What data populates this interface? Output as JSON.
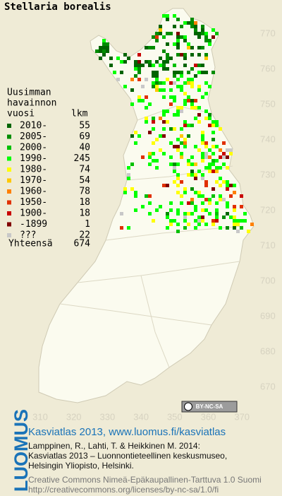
{
  "title": "Stellaria borealis",
  "legend": {
    "heading": [
      "Uusimman",
      "havainnon",
      "vuosi"
    ],
    "count_heading": "lkm",
    "items": [
      {
        "label": "2010-",
        "count": 55,
        "color": "#006400"
      },
      {
        "label": "2005-",
        "count": 69,
        "color": "#008c00"
      },
      {
        "label": "2000-",
        "count": 40,
        "color": "#00c000"
      },
      {
        "label": "1990-",
        "count": 245,
        "color": "#00ff00"
      },
      {
        "label": "1980-",
        "count": 74,
        "color": "#ffff00"
      },
      {
        "label": "1970-",
        "count": 54,
        "color": "#ffc800"
      },
      {
        "label": "1960-",
        "count": 78,
        "color": "#ff8000"
      },
      {
        "label": "1950-",
        "count": 18,
        "color": "#e03000"
      },
      {
        "label": "1900-",
        "count": 18,
        "color": "#c80000"
      },
      {
        "label": "-1899",
        "count": 1,
        "color": "#800000"
      },
      {
        "label": "???",
        "count": 22,
        "color": "#c8c8c8"
      }
    ],
    "total_label": "Yhteensä",
    "total": 674
  },
  "map": {
    "xticks": [
      310,
      320,
      330,
      340,
      350,
      360,
      370
    ],
    "yticks": [
      770,
      760,
      750,
      740,
      730,
      720,
      710,
      700,
      690,
      680,
      670
    ]
  },
  "badge": "BY-NC-SA",
  "footer": {
    "logo": "LUOMUS",
    "link": "Kasviatlas 2013, www.luomus.fi/kasviatlas",
    "citation": [
      "Lamppinen, R., Lahti, T. & Heikkinen M. 2014:",
      "Kasviatlas 2013 – Luonnontieteellinen keskusmuseo,",
      "Helsingin Yliopisto, Helsinki."
    ],
    "license": [
      "Creative Commons Nimeä-Epäkaupallinen-Tarttuva 1.0 Suomi",
      "http://creativecommons.org/licenses/by-nc-sa/1.0/fi"
    ]
  }
}
